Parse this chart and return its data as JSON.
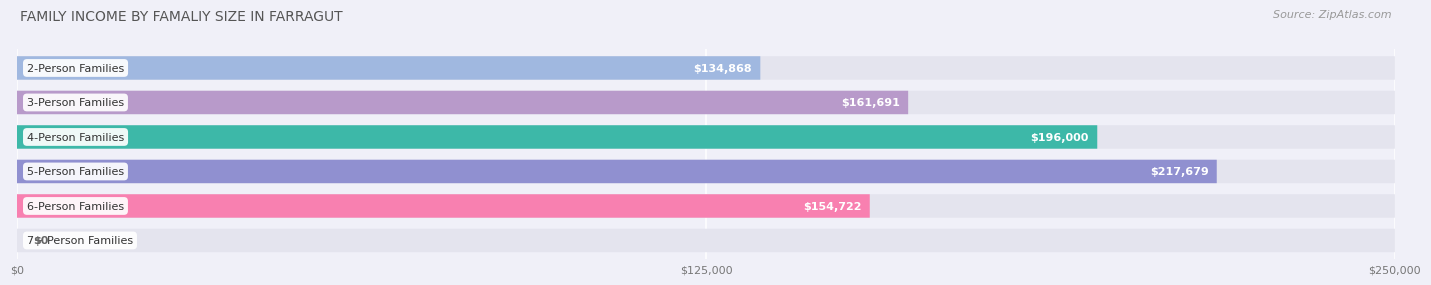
{
  "title": "FAMILY INCOME BY FAMALIY SIZE IN FARRAGUT",
  "source": "Source: ZipAtlas.com",
  "categories": [
    "2-Person Families",
    "3-Person Families",
    "4-Person Families",
    "5-Person Families",
    "6-Person Families",
    "7+ Person Families"
  ],
  "values": [
    134868,
    161691,
    196000,
    217679,
    154722,
    0
  ],
  "bar_colors": [
    "#a0b8e0",
    "#b89aca",
    "#3db8a8",
    "#9090d0",
    "#f880b0",
    "#f0c890"
  ],
  "label_texts": [
    "$134,868",
    "$161,691",
    "$196,000",
    "$217,679",
    "$154,722",
    "$0"
  ],
  "max_value": 250000,
  "x_ticks": [
    0,
    125000,
    250000
  ],
  "x_tick_labels": [
    "$0",
    "$125,000",
    "$250,000"
  ],
  "background_color": "#f0f0f8",
  "bar_bg_color": "#e4e4ee",
  "title_fontsize": 10,
  "source_fontsize": 8,
  "label_fontsize": 8.5,
  "value_fontsize": 8,
  "category_fontsize": 8
}
